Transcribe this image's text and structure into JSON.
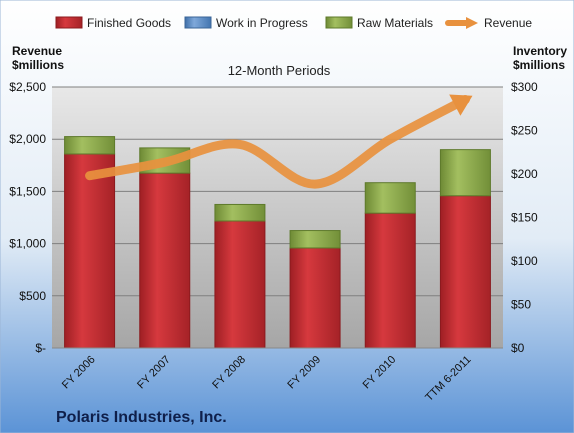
{
  "chart_data": {
    "type": "bar",
    "title": "12-Month Periods",
    "footer_title": "Polaris Industries, Inc.",
    "left_axis_label": [
      "Revenue",
      "$millions"
    ],
    "right_axis_label": [
      "Inventory",
      "$millions"
    ],
    "categories": [
      "FY 2006",
      "FY 2007",
      "FY 2008",
      "FY 2009",
      "FY 2010",
      "TTM 6-2011"
    ],
    "stacked": true,
    "series": [
      {
        "name": "Finished Goods",
        "axis": "right",
        "color": "#C0282D",
        "values": [
          223,
          201,
          146,
          115,
          155,
          175
        ]
      },
      {
        "name": "Work in Progress",
        "axis": "right",
        "color": "#4F81BD",
        "values": [
          0,
          0,
          0,
          0,
          0,
          0
        ]
      },
      {
        "name": "Raw Materials",
        "axis": "right",
        "color": "#8FA84A",
        "values": [
          20,
          29,
          19,
          20,
          35,
          53
        ]
      },
      {
        "name": "Revenue",
        "axis": "left",
        "type": "line",
        "color": "#E8913E",
        "values": [
          1650,
          1780,
          1950,
          1570,
          2000,
          2380
        ]
      }
    ],
    "left_axis": {
      "ylim": [
        0,
        2500
      ],
      "ticks": [
        "$-",
        "$500",
        "$1,000",
        "$1,500",
        "$2,000",
        "$2,500"
      ]
    },
    "right_axis": {
      "ylim": [
        0,
        300
      ],
      "ticks": [
        "$0",
        "$50",
        "$100",
        "$150",
        "$200",
        "$250",
        "$300"
      ]
    },
    "legend_position": "top",
    "grid": true
  }
}
